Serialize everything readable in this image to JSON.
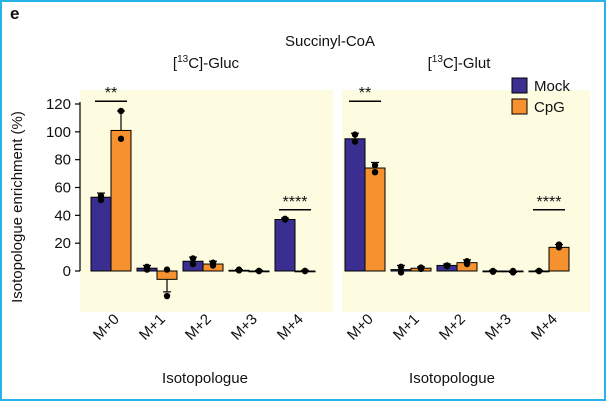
{
  "panel_letter": "e",
  "chart_data": {
    "type": "bar",
    "title": "Succinyl-CoA",
    "ylabel": "Isotopologue enrichment (%)",
    "ylim": [
      -22,
      125
    ],
    "yticks": [
      0,
      20,
      40,
      60,
      80,
      100,
      120
    ],
    "grid": false,
    "legend_position": "top-right",
    "colors": {
      "Mock": "#3a2f91",
      "CpG": "#f5922f",
      "background": "#fdfbe0"
    },
    "panels": [
      {
        "subtitle": "[13C]-Gluc",
        "subtitle_prefix": "[",
        "subtitle_sup": "13",
        "subtitle_suffix": "C]-Gluc",
        "xlabel": "Isotopologue",
        "categories": [
          "M+0",
          "M+1",
          "M+2",
          "M+3",
          "M+4"
        ],
        "series": [
          {
            "name": "Mock",
            "values": [
              53,
              2,
              7,
              0.5,
              37
            ],
            "errors": [
              3,
              2,
              3,
              0.5,
              1
            ],
            "points": [
              [
                54,
                51
              ],
              [
                3,
                1
              ],
              [
                9,
                5
              ],
              [
                1,
                0.5
              ],
              [
                37.5,
                37
              ]
            ]
          },
          {
            "name": "CpG",
            "values": [
              101,
              -6,
              5,
              0,
              0
            ],
            "errors": [
              14,
              9,
              2,
              0.5,
              0.5
            ],
            "points": [
              [
                115,
                95
              ],
              [
                1,
                -18
              ],
              [
                6,
                4
              ],
              [
                0,
                0
              ],
              [
                0,
                0
              ]
            ]
          }
        ],
        "significance": [
          {
            "category": "M+0",
            "label": "**",
            "y": 122
          },
          {
            "category": "M+4",
            "label": "****",
            "y": 44
          }
        ]
      },
      {
        "subtitle": "[13C]-Glut",
        "subtitle_prefix": "[",
        "subtitle_sup": "13",
        "subtitle_suffix": "C]-Glut",
        "xlabel": "Isotopologue",
        "categories": [
          "M+0",
          "M+1",
          "M+2",
          "M+3",
          "M+4"
        ],
        "series": [
          {
            "name": "Mock",
            "values": [
              95,
              1,
              4,
              0,
              0
            ],
            "errors": [
              4,
              3,
              1,
              0.5,
              0.5
            ],
            "points": [
              [
                98,
                93
              ],
              [
                3,
                -1
              ],
              [
                4,
                3.5
              ],
              [
                0,
                -0.5
              ],
              [
                0,
                0
              ]
            ]
          },
          {
            "name": "CpG",
            "values": [
              74,
              2,
              6,
              -0.5,
              17
            ],
            "errors": [
              4,
              1,
              2,
              0.5,
              2
            ],
            "points": [
              [
                76,
                71
              ],
              [
                2.5,
                1.5
              ],
              [
                7,
                5
              ],
              [
                0,
                -1
              ],
              [
                19,
                17
              ]
            ]
          }
        ],
        "significance": [
          {
            "category": "M+0",
            "label": "**",
            "y": 122
          },
          {
            "category": "M+4",
            "label": "****",
            "y": 44
          }
        ]
      }
    ]
  }
}
